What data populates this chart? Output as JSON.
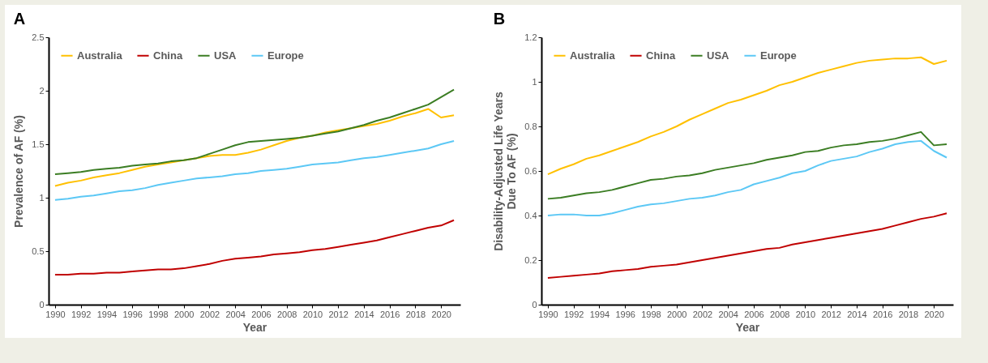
{
  "chart_data": [
    {
      "type": "line",
      "title": "A",
      "xlabel": "Year",
      "ylabel": "Prevalence of AF (%)",
      "x": [
        1990,
        1991,
        1992,
        1993,
        1994,
        1995,
        1996,
        1997,
        1998,
        1999,
        2000,
        2001,
        2002,
        2003,
        2004,
        2005,
        2006,
        2007,
        2008,
        2009,
        2010,
        2011,
        2012,
        2013,
        2014,
        2015,
        2016,
        2017,
        2018,
        2019,
        2020,
        2021
      ],
      "xlim": [
        1989.5,
        2021.5
      ],
      "xticks": [
        1990,
        1992,
        1994,
        1996,
        1998,
        2000,
        2002,
        2004,
        2006,
        2008,
        2010,
        2012,
        2014,
        2016,
        2018,
        2020
      ],
      "ylim": [
        0,
        2.5
      ],
      "yticks": [
        0,
        0.5,
        1,
        1.5,
        2,
        2.5
      ],
      "legend": "top left",
      "grid": false,
      "marker": "none",
      "series": [
        {
          "name": "Australia",
          "color": "#ffc000",
          "values": [
            1.11,
            1.14,
            1.16,
            1.19,
            1.21,
            1.23,
            1.26,
            1.29,
            1.31,
            1.33,
            1.35,
            1.37,
            1.39,
            1.4,
            1.4,
            1.42,
            1.45,
            1.49,
            1.53,
            1.56,
            1.58,
            1.61,
            1.63,
            1.65,
            1.67,
            1.69,
            1.72,
            1.76,
            1.79,
            1.83,
            1.75,
            1.77
          ]
        },
        {
          "name": "China",
          "color": "#c00000",
          "values": [
            0.28,
            0.28,
            0.29,
            0.29,
            0.3,
            0.3,
            0.31,
            0.32,
            0.33,
            0.33,
            0.34,
            0.36,
            0.38,
            0.41,
            0.43,
            0.44,
            0.45,
            0.47,
            0.48,
            0.49,
            0.51,
            0.52,
            0.54,
            0.56,
            0.58,
            0.6,
            0.63,
            0.66,
            0.69,
            0.72,
            0.74,
            0.79
          ]
        },
        {
          "name": "USA",
          "color": "#3b7d23",
          "values": [
            1.22,
            1.23,
            1.24,
            1.26,
            1.27,
            1.28,
            1.3,
            1.31,
            1.32,
            1.34,
            1.35,
            1.37,
            1.41,
            1.45,
            1.49,
            1.52,
            1.53,
            1.54,
            1.55,
            1.56,
            1.58,
            1.6,
            1.62,
            1.65,
            1.68,
            1.72,
            1.75,
            1.79,
            1.83,
            1.87,
            1.94,
            2.01
          ]
        },
        {
          "name": "Europe",
          "color": "#5cc8f5",
          "values": [
            0.98,
            0.99,
            1.01,
            1.02,
            1.04,
            1.06,
            1.07,
            1.09,
            1.12,
            1.14,
            1.16,
            1.18,
            1.19,
            1.2,
            1.22,
            1.23,
            1.25,
            1.26,
            1.27,
            1.29,
            1.31,
            1.32,
            1.33,
            1.35,
            1.37,
            1.38,
            1.4,
            1.42,
            1.44,
            1.46,
            1.5,
            1.53
          ]
        }
      ]
    },
    {
      "type": "line",
      "title": "B",
      "xlabel": "Year",
      "ylabel": "Disability-Adjusted Life Years\nDue To AF (%)",
      "x": [
        1990,
        1991,
        1992,
        1993,
        1994,
        1995,
        1996,
        1997,
        1998,
        1999,
        2000,
        2001,
        2002,
        2003,
        2004,
        2005,
        2006,
        2007,
        2008,
        2009,
        2010,
        2011,
        2012,
        2013,
        2014,
        2015,
        2016,
        2017,
        2018,
        2019,
        2020,
        2021
      ],
      "xlim": [
        1989.5,
        2021.5
      ],
      "xticks": [
        1990,
        1992,
        1994,
        1996,
        1998,
        2000,
        2002,
        2004,
        2006,
        2008,
        2010,
        2012,
        2014,
        2016,
        2018,
        2020
      ],
      "ylim": [
        0,
        1.2
      ],
      "yticks": [
        0,
        0.2,
        0.4,
        0.6,
        0.8,
        1,
        1.2
      ],
      "legend": "top left",
      "grid": false,
      "marker": "none",
      "series": [
        {
          "name": "Australia",
          "color": "#ffc000",
          "values": [
            0.585,
            0.61,
            0.63,
            0.655,
            0.67,
            0.69,
            0.71,
            0.73,
            0.755,
            0.775,
            0.8,
            0.83,
            0.855,
            0.88,
            0.905,
            0.92,
            0.94,
            0.96,
            0.985,
            1.0,
            1.02,
            1.04,
            1.055,
            1.07,
            1.085,
            1.095,
            1.1,
            1.105,
            1.105,
            1.11,
            1.08,
            1.095
          ]
        },
        {
          "name": "China",
          "color": "#c00000",
          "values": [
            0.12,
            0.125,
            0.13,
            0.135,
            0.14,
            0.15,
            0.155,
            0.16,
            0.17,
            0.175,
            0.18,
            0.19,
            0.2,
            0.21,
            0.22,
            0.23,
            0.24,
            0.25,
            0.255,
            0.27,
            0.28,
            0.29,
            0.3,
            0.31,
            0.32,
            0.33,
            0.34,
            0.355,
            0.37,
            0.385,
            0.395,
            0.41
          ]
        },
        {
          "name": "USA",
          "color": "#3b7d23",
          "values": [
            0.475,
            0.48,
            0.49,
            0.5,
            0.505,
            0.515,
            0.53,
            0.545,
            0.56,
            0.565,
            0.575,
            0.58,
            0.59,
            0.605,
            0.615,
            0.625,
            0.635,
            0.65,
            0.66,
            0.67,
            0.685,
            0.69,
            0.705,
            0.715,
            0.72,
            0.73,
            0.735,
            0.745,
            0.76,
            0.775,
            0.715,
            0.72
          ]
        },
        {
          "name": "Europe",
          "color": "#5cc8f5",
          "values": [
            0.4,
            0.405,
            0.405,
            0.4,
            0.4,
            0.41,
            0.425,
            0.44,
            0.45,
            0.455,
            0.465,
            0.475,
            0.48,
            0.49,
            0.505,
            0.515,
            0.54,
            0.555,
            0.57,
            0.59,
            0.6,
            0.625,
            0.645,
            0.655,
            0.665,
            0.685,
            0.7,
            0.72,
            0.73,
            0.735,
            0.69,
            0.66
          ]
        }
      ]
    }
  ]
}
